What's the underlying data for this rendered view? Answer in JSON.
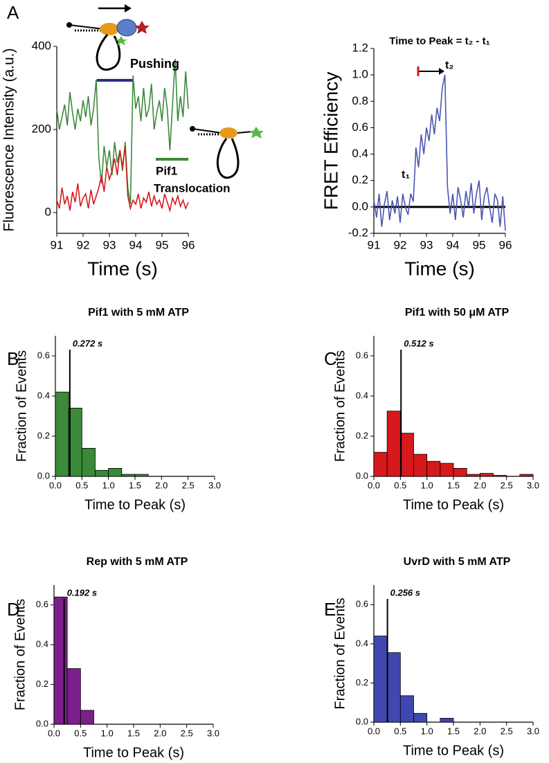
{
  "chart_data": [
    {
      "panel": "A",
      "type": "line",
      "xlabel": "Time (s)",
      "ylabel": "Fluorescence Intensity (a.u.)",
      "annotations": [
        "Pushing",
        "Pif1",
        "Translocation"
      ],
      "x": [
        91.0,
        91.1,
        91.2,
        91.3,
        91.4,
        91.5,
        91.6,
        91.7,
        91.8,
        91.9,
        92.0,
        92.1,
        92.2,
        92.3,
        92.4,
        92.5,
        92.6,
        92.7,
        92.8,
        92.9,
        93.0,
        93.1,
        93.2,
        93.3,
        93.4,
        93.5,
        93.6,
        93.7,
        93.8,
        93.9,
        94.0,
        94.1,
        94.2,
        94.3,
        94.4,
        94.5,
        94.6,
        94.7,
        94.8,
        94.9,
        95.0,
        95.1,
        95.2,
        95.3,
        95.4,
        95.5,
        95.6,
        95.7,
        95.8,
        95.9,
        96.0
      ],
      "series": [
        {
          "color": "#3a8a3a",
          "values": [
            250,
            200,
            230,
            260,
            210,
            290,
            240,
            200,
            250,
            220,
            270,
            230,
            280,
            210,
            250,
            320,
            130,
            70,
            160,
            110,
            150,
            90,
            170,
            120,
            150,
            100,
            170,
            60,
            20,
            330,
            250,
            280,
            220,
            300,
            230,
            250,
            310,
            200,
            240,
            270,
            220,
            300,
            250,
            150,
            260,
            370,
            220,
            280,
            230,
            340,
            250
          ]
        },
        {
          "color": "#d7191c",
          "values": [
            30,
            10,
            60,
            20,
            40,
            5,
            50,
            25,
            70,
            15,
            35,
            45,
            10,
            55,
            20,
            40,
            60,
            90,
            50,
            110,
            80,
            100,
            130,
            90,
            150,
            110,
            160,
            40,
            10,
            30,
            20,
            45,
            10,
            35,
            25,
            50,
            15,
            40,
            20,
            30,
            10,
            45,
            25,
            5,
            35,
            20,
            40,
            15,
            30,
            10,
            25
          ]
        }
      ],
      "xlim": [
        91,
        96
      ],
      "xticks": [
        91,
        92,
        93,
        94,
        95,
        96
      ],
      "ylim": [
        -50,
        400
      ],
      "yticks": [
        0,
        200,
        400
      ]
    },
    {
      "panel": "",
      "type": "line",
      "title": "Time to Peak = t₂ - t₁",
      "xlabel": "Time (s)",
      "ylabel": "FRET Efficiency",
      "annotations": [
        "t₁",
        "t₂"
      ],
      "reference_line": 0,
      "x": [
        91.0,
        91.1,
        91.2,
        91.3,
        91.4,
        91.5,
        91.6,
        91.7,
        91.8,
        91.9,
        92.0,
        92.1,
        92.2,
        92.3,
        92.4,
        92.5,
        92.6,
        92.7,
        92.8,
        92.9,
        93.0,
        93.1,
        93.2,
        93.3,
        93.4,
        93.5,
        93.6,
        93.7,
        93.8,
        93.9,
        94.0,
        94.1,
        94.2,
        94.3,
        94.4,
        94.5,
        94.6,
        94.7,
        94.8,
        94.9,
        95.0,
        95.1,
        95.2,
        95.3,
        95.4,
        95.5,
        95.6,
        95.7,
        95.8,
        95.9,
        96.0
      ],
      "series": [
        {
          "color": "#4a55b0",
          "values": [
            0.05,
            -0.08,
            0.1,
            -0.15,
            0.02,
            0.12,
            -0.1,
            0.05,
            -0.05,
            0.08,
            -0.12,
            0.1,
            0,
            -0.06,
            0.1,
            0.04,
            0.45,
            0.3,
            0.55,
            0.4,
            0.6,
            0.5,
            0.7,
            0.55,
            0.75,
            0.65,
            0.9,
            1.0,
            0.15,
            -0.05,
            0.1,
            -0.1,
            0.15,
            0.05,
            -0.08,
            0.12,
            0,
            0.18,
            -0.05,
            0.1,
            0.2,
            -0.1,
            0.08,
            0.15,
            0,
            -0.12,
            0.1,
            0.05,
            -0.15,
            0.08,
            -0.18
          ]
        }
      ],
      "xlim": [
        91,
        96
      ],
      "xticks": [
        91,
        92,
        93,
        94,
        95,
        96
      ],
      "ylim": [
        -0.2,
        1.2
      ],
      "yticks": [
        -0.2,
        {
          "value": 0,
          "label": "0.0"
        },
        0.2,
        0.4,
        0.6,
        0.8,
        {
          "value": 1,
          "label": "1.0"
        },
        1.2
      ]
    },
    {
      "panel": "B",
      "type": "histogram",
      "title": "Pif1 with 5 mM ATP",
      "xlabel": "Time to Peak (s)",
      "ylabel": "Fraction of Events",
      "color": "#3a8a3a",
      "bins": [
        0,
        0.25,
        0.5,
        0.75,
        1,
        1.25,
        1.5,
        1.75,
        2,
        2.25,
        2.5,
        2.75,
        3
      ],
      "values": [
        0.42,
        0.34,
        0.14,
        0.03,
        0.04,
        0.01,
        0.01,
        0,
        0,
        0,
        0,
        0
      ],
      "mean_line": {
        "value": 0.272,
        "label": "0.272 s"
      },
      "xlim": [
        0,
        3
      ],
      "xticks": [
        {
          "value": 0,
          "label": "0.0"
        },
        0.5,
        {
          "value": 1,
          "label": "1.0"
        },
        1.5,
        {
          "value": 2,
          "label": "2.0"
        },
        2.5,
        {
          "value": 3,
          "label": "3.0"
        }
      ],
      "ylim": [
        0,
        0.7
      ],
      "yticks": [
        {
          "value": 0,
          "label": "0.0"
        },
        0.2,
        0.4,
        0.6
      ]
    },
    {
      "panel": "C",
      "type": "histogram",
      "title": "Pif1 with 50 μM ATP",
      "xlabel": "Time to Peak (s)",
      "ylabel": "Fraction of Events",
      "color": "#d7191c",
      "bins": [
        0,
        0.25,
        0.5,
        0.75,
        1,
        1.25,
        1.5,
        1.75,
        2,
        2.25,
        2.5,
        2.75,
        3
      ],
      "values": [
        0.12,
        0.325,
        0.215,
        0.11,
        0.075,
        0.065,
        0.04,
        0.01,
        0.015,
        0.005,
        0,
        0.01
      ],
      "mean_line": {
        "value": 0.512,
        "label": "0.512 s"
      },
      "xlim": [
        0,
        3
      ],
      "xticks": [
        {
          "value": 0,
          "label": "0.0"
        },
        0.5,
        {
          "value": 1,
          "label": "1.0"
        },
        1.5,
        {
          "value": 2,
          "label": "2.0"
        },
        2.5,
        {
          "value": 3,
          "label": "3.0"
        }
      ],
      "ylim": [
        0,
        0.7
      ],
      "yticks": [
        {
          "value": 0,
          "label": "0.0"
        },
        0.2,
        0.4,
        0.6
      ]
    },
    {
      "panel": "D",
      "type": "histogram",
      "title": "Rep with 5 mM ATP",
      "xlabel": "Time to Peak (s)",
      "ylabel": "Fraction of Events",
      "color": "#7b1f8a",
      "bins": [
        0,
        0.25,
        0.5,
        0.75,
        1,
        1.25,
        1.5,
        1.75,
        2,
        2.25,
        2.5,
        2.75,
        3
      ],
      "values": [
        0.64,
        0.28,
        0.07,
        0,
        0,
        0,
        0,
        0,
        0,
        0,
        0,
        0
      ],
      "mean_line": {
        "value": 0.192,
        "label": "0.192 s"
      },
      "xlim": [
        0,
        3
      ],
      "xticks": [
        {
          "value": 0,
          "label": "0.0"
        },
        0.5,
        {
          "value": 1,
          "label": "1.0"
        },
        1.5,
        {
          "value": 2,
          "label": "2.0"
        },
        2.5,
        {
          "value": 3,
          "label": "3.0"
        }
      ],
      "ylim": [
        0,
        0.7
      ],
      "yticks": [
        {
          "value": 0,
          "label": "0.0"
        },
        0.2,
        0.4,
        0.6
      ]
    },
    {
      "panel": "E",
      "type": "histogram",
      "title": "UvrD with 5 mM ATP",
      "xlabel": "Time to Peak (s)",
      "ylabel": "Fraction of Events",
      "color": "#3f48b0",
      "bins": [
        0,
        0.25,
        0.5,
        0.75,
        1,
        1.25,
        1.5,
        1.75,
        2,
        2.25,
        2.5,
        2.75,
        3
      ],
      "values": [
        0.44,
        0.355,
        0.135,
        0.045,
        0,
        0.02,
        0,
        0,
        0,
        0,
        0,
        0
      ],
      "mean_line": {
        "value": 0.256,
        "label": "0.256 s"
      },
      "xlim": [
        0,
        3
      ],
      "xticks": [
        {
          "value": 0,
          "label": "0.0"
        },
        0.5,
        {
          "value": 1,
          "label": "1.0"
        },
        1.5,
        {
          "value": 2,
          "label": "2.0"
        },
        2.5,
        {
          "value": 3,
          "label": "3.0"
        }
      ],
      "ylim": [
        0,
        0.7
      ],
      "yticks": [
        {
          "value": 0,
          "label": "0.0"
        },
        0.2,
        0.4,
        0.6
      ]
    }
  ]
}
